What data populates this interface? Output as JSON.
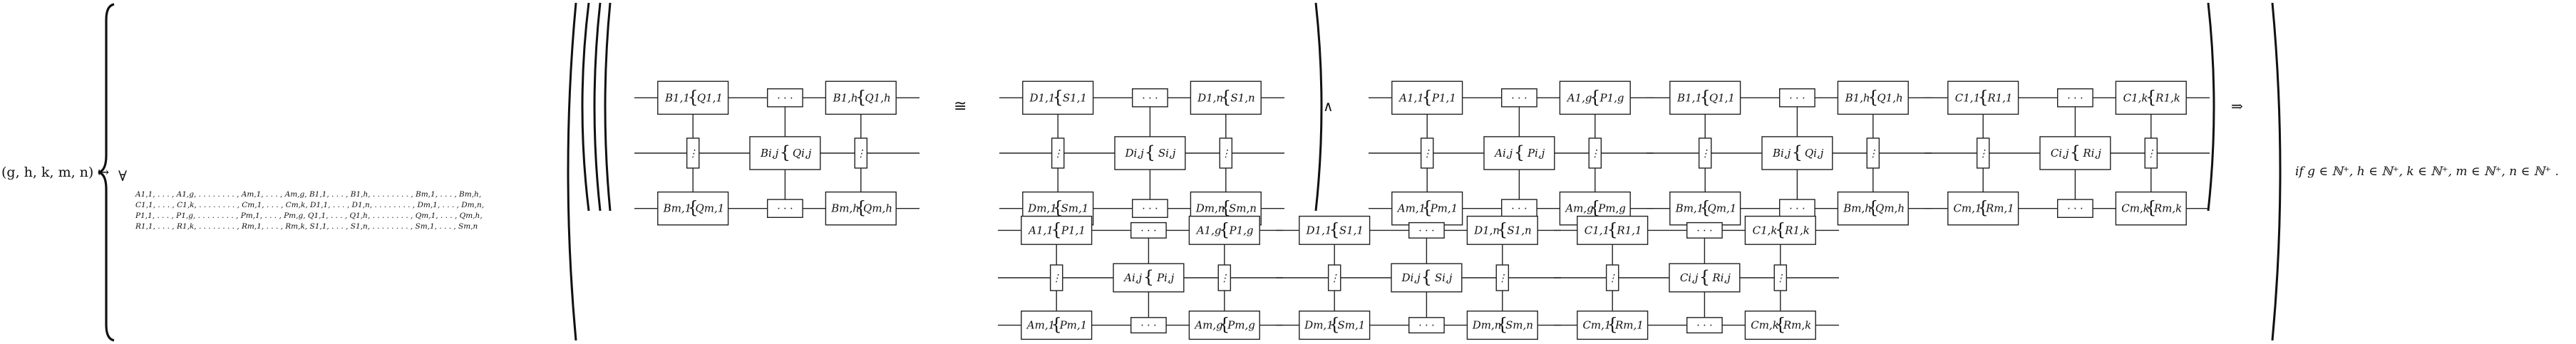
{
  "map_lhs": "(g, h, k, m, n) ↦",
  "forall": "∀",
  "quantifier_lines": [
    "A1,1, . . . , A1,g, . . . . . . . . , Am,1, . . . , Am,g, B1,1, . . . , B1,h, . . . . . . . . , Bm,1, . . . , Bm,h,",
    "C1,1, . . . , C1,k, . . . . . . . . , Cm,1, . . . , Cm,k, D1,1, . . . , D1,n, . . . . . . . . , Dm,1, . . . , Dm,n,",
    "P1,1, . . . , P1,g, . . . . . . . . , Pm,1, . . . , Pm,g, Q1,1, . . . , Q1,h, . . . . . . . . , Qm,1, . . . , Qm,h,",
    "R1,1, . . . , R1,k, . . . . . . . . , Rm,1, . . . , Rm,k, S1,1, . . . , S1,n, . . . . . . . . , Sm,1, . . . , Sm,n"
  ],
  "symbols": {
    "cong": "≅",
    "wedge": "∧",
    "implies": "⇒"
  },
  "condition": "if g ∈ ℕ⁺, h ∈ ℕ⁺, k ∈ ℕ⁺, m ∈ ℕ⁺, n ∈ ℕ⁺ .",
  "dots": "· · ·",
  "vdots": "⋮",
  "grids": {
    "BQ": {
      "corners": [
        "B1,1",
        "Q1,1",
        "B1,h",
        "Q1,h",
        "Bm,1",
        "Qm,1",
        "Bm,h",
        "Qm,h"
      ],
      "center": [
        "Bi,j",
        "Qi,j"
      ]
    },
    "DS": {
      "corners": [
        "D1,1",
        "S1,1",
        "D1,n",
        "S1,n",
        "Dm,1",
        "Sm,1",
        "Dm,n",
        "Sm,n"
      ],
      "center": [
        "Di,j",
        "Si,j"
      ]
    },
    "AP": {
      "corners": [
        "A1,1",
        "P1,1",
        "A1,g",
        "P1,g",
        "Am,1",
        "Pm,1",
        "Am,g",
        "Pm,g"
      ],
      "center": [
        "Ai,j",
        "Pi,j"
      ]
    },
    "CR": {
      "corners": [
        "C1,1",
        "R1,1",
        "C1,k",
        "R1,k",
        "Cm,1",
        "Rm,1",
        "Cm,k",
        "Rm,k"
      ],
      "center": [
        "Ci,j",
        "Ri,j"
      ]
    }
  }
}
